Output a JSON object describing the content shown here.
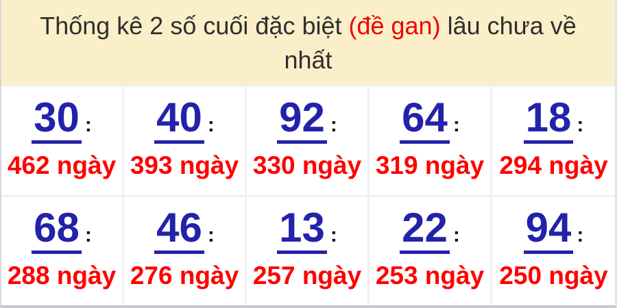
{
  "header": {
    "title_part1": "Thống kê 2 số cuối đặc biệt ",
    "title_highlight": "(đề gan)",
    "title_part2": " lâu chưa về",
    "title_line2": "nhất"
  },
  "labels": {
    "colon": ":"
  },
  "cells": [
    {
      "number": "30",
      "days": "462 ngày"
    },
    {
      "number": "40",
      "days": "393 ngày"
    },
    {
      "number": "92",
      "days": "330 ngày"
    },
    {
      "number": "64",
      "days": "319 ngày"
    },
    {
      "number": "18",
      "days": "294 ngày"
    },
    {
      "number": "68",
      "days": "288 ngày"
    },
    {
      "number": "46",
      "days": "276 ngày"
    },
    {
      "number": "13",
      "days": "257 ngày"
    },
    {
      "number": "22",
      "days": "253 ngày"
    },
    {
      "number": "94",
      "days": "250 ngày"
    }
  ],
  "colors": {
    "header_bg": "#FAEFC8",
    "header_text": "#2F2F2F",
    "header_highlight": "#EE0000",
    "number_blue": "#2222AA",
    "days_red": "#FF0000",
    "grid_line": "#F1F1F1"
  }
}
